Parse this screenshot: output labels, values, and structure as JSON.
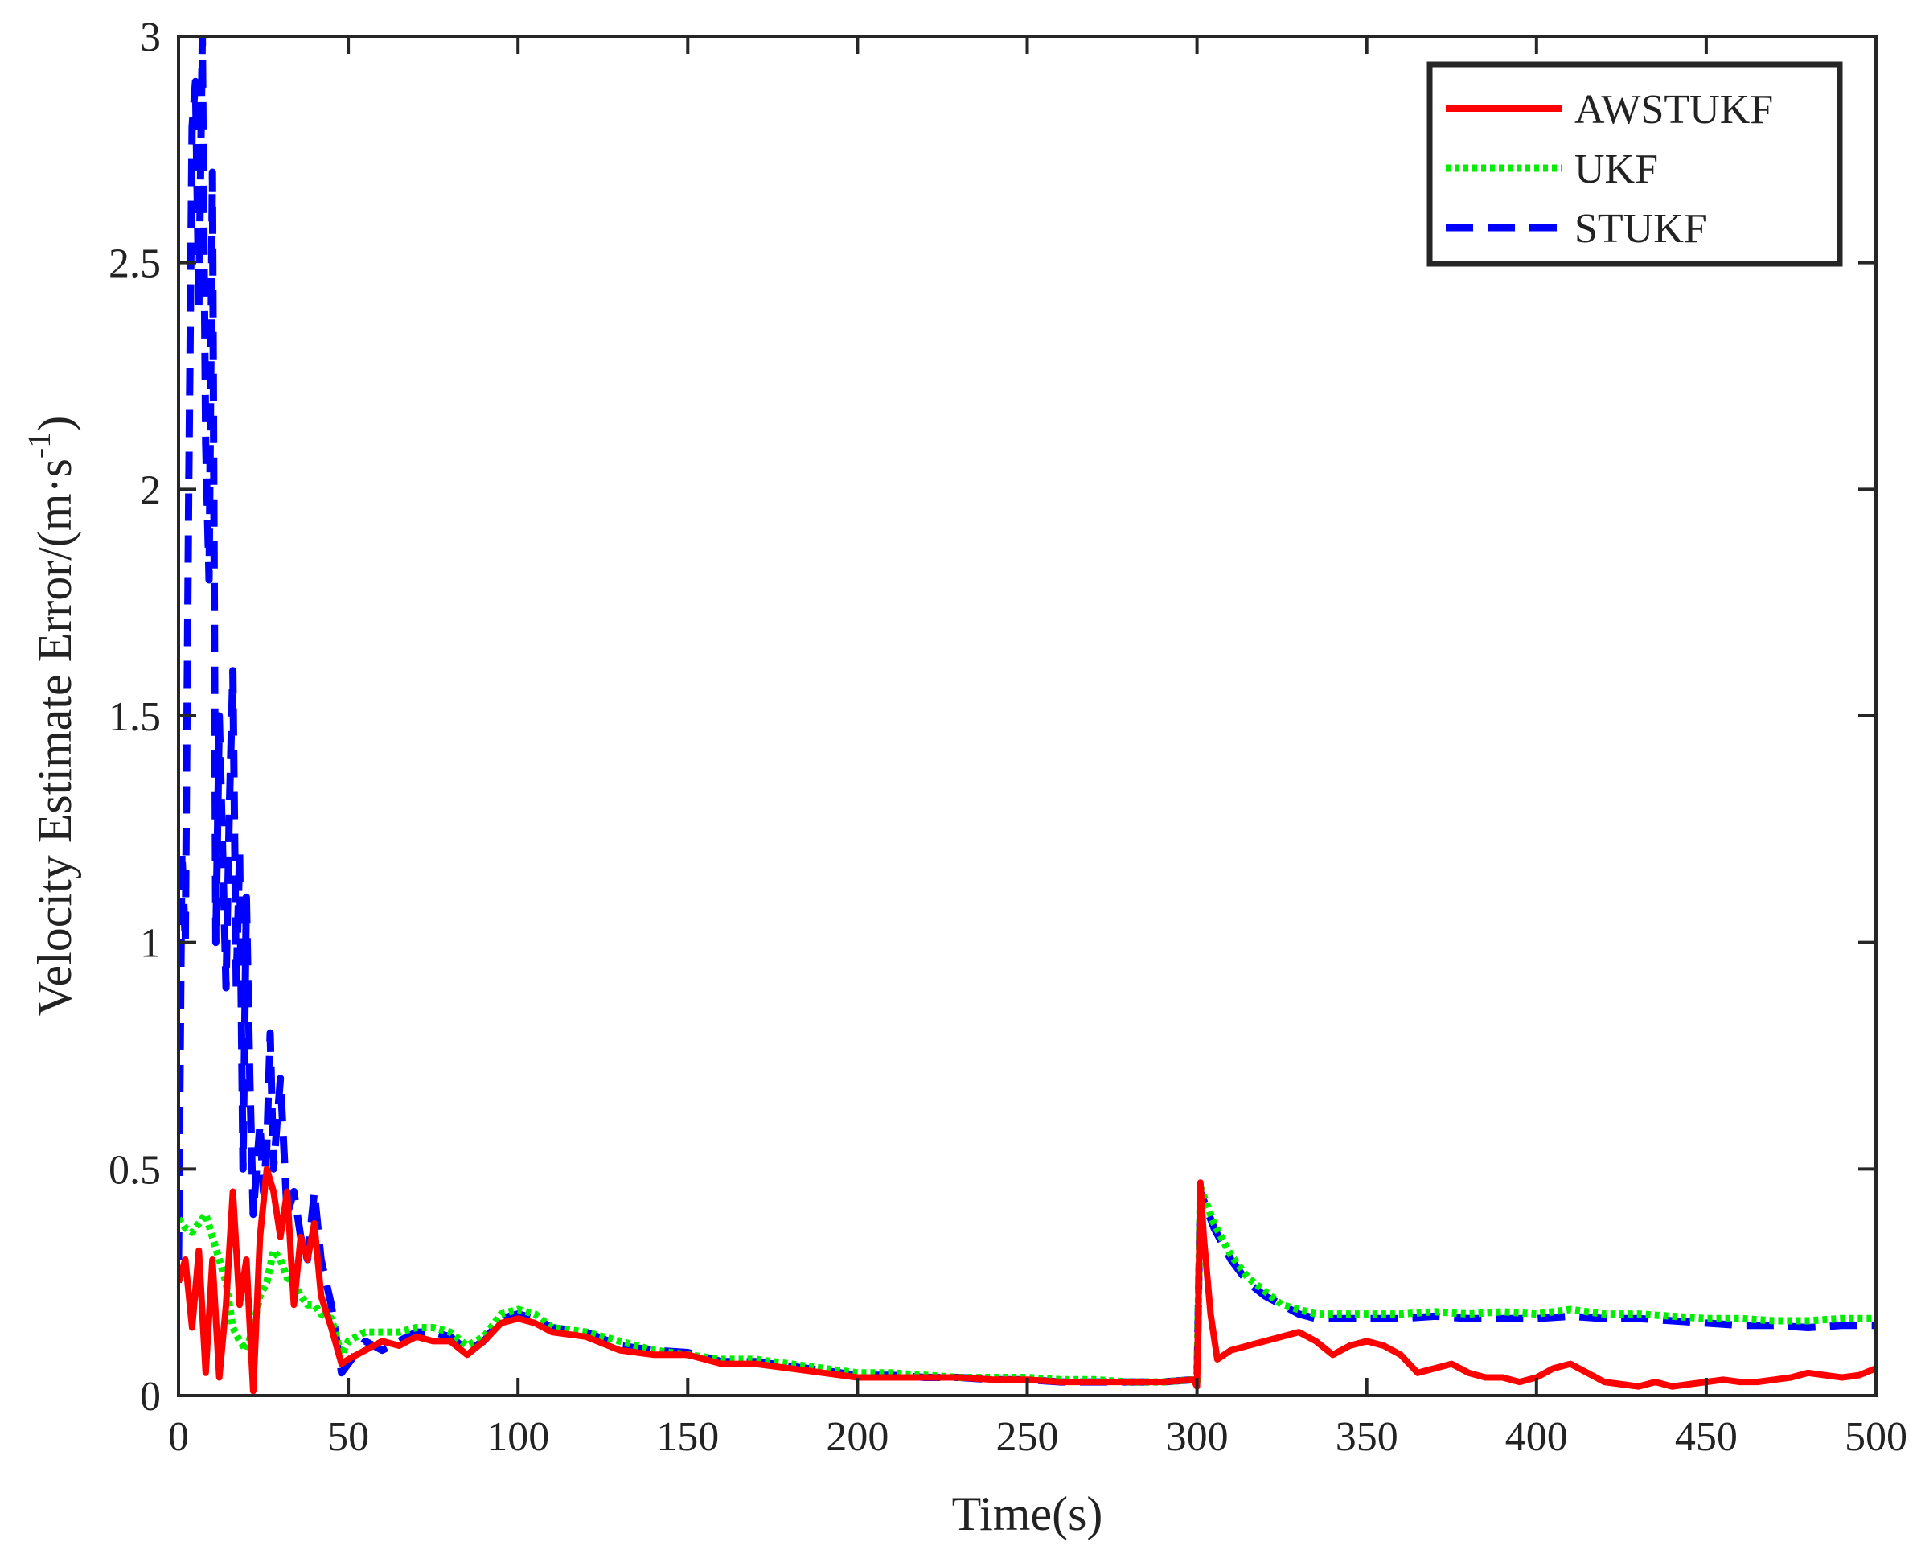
{
  "chart_data": {
    "type": "line",
    "title": "",
    "xlabel": "Time(s)",
    "ylabel_main": "Velocity Estimate Error/(m·s",
    "ylabel_sup": "-1",
    "ylabel_close": ")",
    "xlim": [
      0,
      500
    ],
    "ylim": [
      0,
      3
    ],
    "xticks": [
      0,
      50,
      100,
      150,
      200,
      250,
      300,
      350,
      400,
      450,
      500
    ],
    "xtick_labels": [
      "0",
      "50",
      "100",
      "150",
      "200",
      "250",
      "300",
      "350",
      "400",
      "450",
      "500"
    ],
    "yticks": [
      0,
      0.5,
      1,
      1.5,
      2,
      2.5,
      3
    ],
    "ytick_labels": [
      "0",
      "0.5",
      "1",
      "1.5",
      "2",
      "2.5",
      "3"
    ],
    "grid": false,
    "legend_position": "top-right",
    "series": [
      {
        "name": "AWSTUKF",
        "color": "#ff0000",
        "style": "solid",
        "x": [
          0,
          2,
          4,
          6,
          8,
          10,
          12,
          14,
          16,
          18,
          20,
          22,
          24,
          26,
          28,
          30,
          32,
          34,
          36,
          38,
          40,
          42,
          45,
          48,
          50,
          55,
          60,
          65,
          70,
          75,
          80,
          85,
          90,
          95,
          100,
          105,
          110,
          120,
          130,
          140,
          150,
          160,
          170,
          180,
          190,
          200,
          210,
          220,
          230,
          240,
          250,
          260,
          270,
          280,
          290,
          299,
          300,
          301,
          302,
          304,
          306,
          310,
          315,
          320,
          325,
          330,
          335,
          340,
          345,
          350,
          355,
          360,
          365,
          370,
          375,
          380,
          385,
          390,
          395,
          400,
          405,
          410,
          415,
          420,
          425,
          430,
          435,
          440,
          445,
          450,
          455,
          460,
          465,
          470,
          475,
          480,
          485,
          490,
          495,
          500
        ],
        "values": [
          0.25,
          0.3,
          0.15,
          0.32,
          0.05,
          0.3,
          0.04,
          0.2,
          0.45,
          0.2,
          0.3,
          0.01,
          0.35,
          0.5,
          0.45,
          0.35,
          0.45,
          0.2,
          0.35,
          0.3,
          0.38,
          0.22,
          0.15,
          0.07,
          0.08,
          0.1,
          0.12,
          0.11,
          0.13,
          0.12,
          0.12,
          0.09,
          0.12,
          0.16,
          0.17,
          0.16,
          0.14,
          0.13,
          0.1,
          0.09,
          0.09,
          0.07,
          0.07,
          0.06,
          0.05,
          0.04,
          0.04,
          0.04,
          0.04,
          0.035,
          0.035,
          0.03,
          0.03,
          0.03,
          0.03,
          0.035,
          0.02,
          0.47,
          0.35,
          0.18,
          0.08,
          0.1,
          0.11,
          0.12,
          0.13,
          0.14,
          0.12,
          0.09,
          0.11,
          0.12,
          0.11,
          0.09,
          0.05,
          0.06,
          0.07,
          0.05,
          0.04,
          0.04,
          0.03,
          0.04,
          0.06,
          0.07,
          0.05,
          0.03,
          0.025,
          0.02,
          0.03,
          0.02,
          0.025,
          0.03,
          0.035,
          0.03,
          0.03,
          0.035,
          0.04,
          0.05,
          0.045,
          0.04,
          0.045,
          0.06
        ]
      },
      {
        "name": "UKF",
        "color": "#00ee00",
        "style": "dotted",
        "x": [
          0,
          2,
          4,
          6,
          8,
          10,
          12,
          14,
          16,
          18,
          20,
          22,
          24,
          26,
          28,
          30,
          32,
          34,
          36,
          38,
          40,
          42,
          45,
          48,
          50,
          55,
          60,
          65,
          70,
          75,
          80,
          85,
          90,
          95,
          100,
          105,
          110,
          120,
          130,
          140,
          150,
          160,
          170,
          180,
          190,
          200,
          210,
          220,
          230,
          240,
          250,
          260,
          270,
          280,
          290,
          299,
          300,
          301,
          305,
          310,
          315,
          320,
          325,
          330,
          335,
          340,
          350,
          360,
          370,
          380,
          390,
          400,
          410,
          420,
          430,
          440,
          450,
          460,
          470,
          480,
          490,
          500
        ],
        "values": [
          0.39,
          0.37,
          0.36,
          0.38,
          0.4,
          0.35,
          0.3,
          0.25,
          0.15,
          0.12,
          0.1,
          0.15,
          0.22,
          0.25,
          0.32,
          0.3,
          0.26,
          0.25,
          0.22,
          0.2,
          0.2,
          0.18,
          0.17,
          0.09,
          0.12,
          0.14,
          0.14,
          0.14,
          0.15,
          0.15,
          0.14,
          0.11,
          0.13,
          0.18,
          0.19,
          0.18,
          0.15,
          0.14,
          0.12,
          0.1,
          0.09,
          0.08,
          0.08,
          0.07,
          0.06,
          0.05,
          0.05,
          0.045,
          0.04,
          0.04,
          0.04,
          0.035,
          0.035,
          0.03,
          0.03,
          0.035,
          0.03,
          0.46,
          0.38,
          0.31,
          0.26,
          0.23,
          0.2,
          0.19,
          0.18,
          0.18,
          0.18,
          0.18,
          0.185,
          0.18,
          0.185,
          0.18,
          0.19,
          0.18,
          0.18,
          0.175,
          0.17,
          0.17,
          0.165,
          0.165,
          0.17,
          0.17
        ]
      },
      {
        "name": "STUKF",
        "color": "#0000ff",
        "style": "dashed",
        "x": [
          0,
          1,
          2,
          3,
          4,
          5,
          6,
          7,
          8,
          9,
          10,
          11,
          12,
          13,
          14,
          15,
          16,
          17,
          18,
          19,
          20,
          21,
          22,
          23,
          24,
          25,
          26,
          27,
          28,
          30,
          32,
          34,
          36,
          38,
          40,
          42,
          45,
          48,
          50,
          55,
          60,
          65,
          70,
          75,
          80,
          85,
          90,
          95,
          100,
          105,
          110,
          120,
          130,
          140,
          150,
          160,
          170,
          180,
          190,
          200,
          210,
          220,
          230,
          240,
          250,
          260,
          270,
          280,
          290,
          299,
          300,
          301,
          305,
          310,
          315,
          320,
          325,
          330,
          335,
          340,
          350,
          360,
          370,
          380,
          390,
          400,
          410,
          420,
          430,
          440,
          450,
          460,
          470,
          480,
          490,
          500
        ],
        "values": [
          0.3,
          1.2,
          1.0,
          2.0,
          2.8,
          2.9,
          2.4,
          3.0,
          2.1,
          1.8,
          2.7,
          1.0,
          1.5,
          1.2,
          0.9,
          1.3,
          1.6,
          0.9,
          1.2,
          0.5,
          1.1,
          0.7,
          0.4,
          0.5,
          0.6,
          0.45,
          0.55,
          0.8,
          0.5,
          0.7,
          0.4,
          0.45,
          0.35,
          0.3,
          0.45,
          0.3,
          0.2,
          0.05,
          0.07,
          0.12,
          0.1,
          0.12,
          0.14,
          0.14,
          0.13,
          0.1,
          0.12,
          0.17,
          0.18,
          0.17,
          0.15,
          0.14,
          0.11,
          0.1,
          0.095,
          0.075,
          0.075,
          0.065,
          0.055,
          0.045,
          0.045,
          0.04,
          0.04,
          0.035,
          0.035,
          0.03,
          0.03,
          0.03,
          0.03,
          0.035,
          0.03,
          0.45,
          0.37,
          0.3,
          0.25,
          0.22,
          0.2,
          0.18,
          0.17,
          0.17,
          0.17,
          0.17,
          0.175,
          0.17,
          0.17,
          0.17,
          0.175,
          0.17,
          0.17,
          0.165,
          0.16,
          0.155,
          0.155,
          0.15,
          0.155,
          0.155
        ]
      }
    ]
  }
}
